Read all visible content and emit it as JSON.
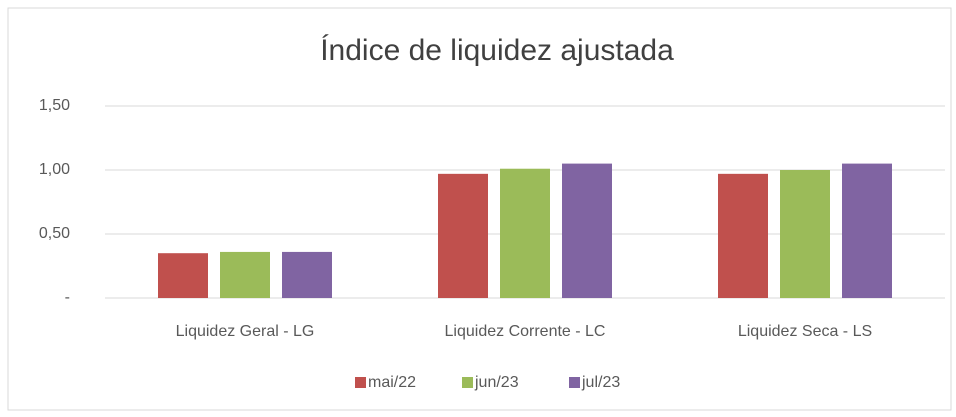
{
  "chart_data": {
    "type": "bar",
    "title": "Índice de liquidez ajustada",
    "categories": [
      "Liquidez Geral - LG",
      "Liquidez Corrente - LC",
      "Liquidez Seca - LS"
    ],
    "series": [
      {
        "name": "mai/22",
        "color": "#c0504d",
        "values": [
          0.35,
          0.97,
          0.97
        ]
      },
      {
        "name": "jun/23",
        "color": "#9bbb59",
        "values": [
          0.36,
          1.01,
          1.0
        ]
      },
      {
        "name": "jul/23",
        "color": "#8064a2",
        "values": [
          0.36,
          1.05,
          1.05
        ]
      }
    ],
    "ylim": [
      0,
      1.5
    ],
    "yticks": [
      {
        "value": 0,
        "label": "-"
      },
      {
        "value": 0.5,
        "label": "0,50"
      },
      {
        "value": 1,
        "label": "1,00"
      },
      {
        "value": 1.5,
        "label": "1,50"
      }
    ],
    "grid": true,
    "legend": "bottom"
  }
}
